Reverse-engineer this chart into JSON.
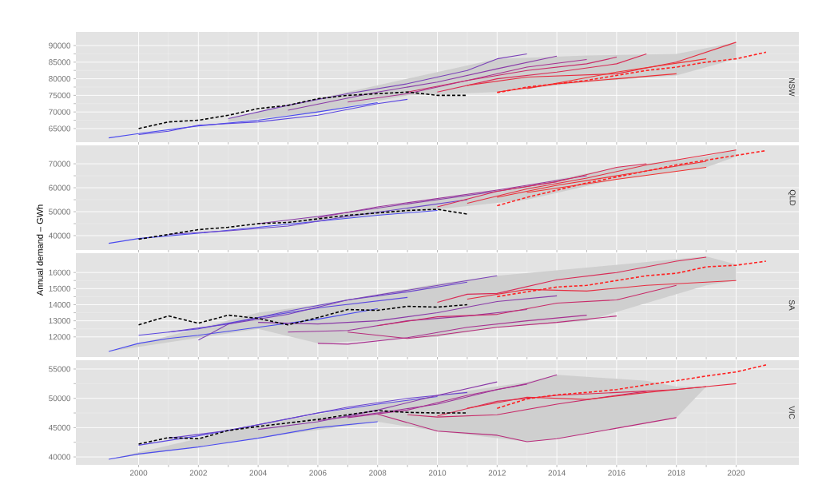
{
  "chart_data": [
    {
      "type": "line",
      "title": "NSW",
      "xlim": [
        1997.9,
        2022.1
      ],
      "ylim": [
        60900,
        94100
      ],
      "xticks": [
        2000,
        2002,
        2004,
        2006,
        2008,
        2010,
        2012,
        2014,
        2016,
        2018,
        2020
      ],
      "yticks": [
        65000,
        70000,
        75000,
        80000,
        85000,
        90000
      ],
      "grid": true,
      "tick_labels": "y",
      "series": [
        {
          "type": "area",
          "color": "#cfcfcf",
          "values": [
            null,
            null,
            null,
            null,
            null,
            null,
            null
          ],
          "x": [
            2003,
            2006,
            2009,
            2012,
            2015,
            2018,
            2020
          ],
          "lower": [
            67000,
            70000,
            75000,
            76000,
            79000,
            81000,
            86000
          ],
          "upper": [
            68000,
            74000,
            80000,
            86000,
            87000,
            87500,
            91000
          ]
        },
        {
          "color": "#4a4aee",
          "x": [
            1999,
            2000,
            2002,
            2004,
            2006,
            2008
          ],
          "values": [
            62200,
            63500,
            65800,
            67500,
            70000,
            72800
          ]
        },
        {
          "color": "#5a46e0",
          "x": [
            2000,
            2001,
            2002,
            2004,
            2006,
            2008,
            2009
          ],
          "values": [
            63200,
            64200,
            66000,
            67000,
            69000,
            72500,
            73800
          ]
        },
        {
          "color": "#7a40b8",
          "x": [
            2003,
            2005,
            2007,
            2009,
            2011,
            2012,
            2013
          ],
          "values": [
            68000,
            72000,
            75500,
            78500,
            82500,
            86000,
            87500
          ]
        },
        {
          "color": "#8a3aa8",
          "x": [
            2005,
            2008,
            2010,
            2012,
            2014
          ],
          "values": [
            70500,
            76000,
            79000,
            83000,
            86800
          ]
        },
        {
          "color": "#a83090",
          "x": [
            2007,
            2009,
            2011,
            2013,
            2015
          ],
          "values": [
            73000,
            75500,
            79500,
            83500,
            85800
          ]
        },
        {
          "color": "#c82a68",
          "x": [
            2009,
            2011,
            2013,
            2015,
            2016
          ],
          "values": [
            76000,
            79500,
            82500,
            84500,
            86500
          ]
        },
        {
          "color": "#d82a55",
          "x": [
            2010,
            2012,
            2014,
            2016,
            2017
          ],
          "values": [
            76000,
            80000,
            82000,
            84500,
            87500
          ]
        },
        {
          "color": "#e62c40",
          "x": [
            2011,
            2013,
            2016,
            2018,
            2020
          ],
          "values": [
            78000,
            80500,
            81500,
            85000,
            91000
          ]
        },
        {
          "color": "#ee2c33",
          "x": [
            2012,
            2014,
            2016,
            2018
          ],
          "values": [
            76000,
            78500,
            80000,
            81500
          ]
        },
        {
          "color": "#f03030",
          "x": [
            2013,
            2016,
            2019
          ],
          "values": [
            77000,
            82000,
            86000
          ]
        },
        {
          "color": "#000000",
          "line_style": "dashed",
          "x": [
            2000,
            2001,
            2002,
            2003,
            2004,
            2005,
            2006,
            2007,
            2008,
            2009,
            2010,
            2011
          ],
          "values": [
            65000,
            67000,
            67500,
            69000,
            71000,
            72000,
            74000,
            75000,
            75500,
            76000,
            75000,
            75000
          ]
        },
        {
          "color": "#ff2020",
          "line_style": "dashed",
          "x": [
            2012,
            2013,
            2014,
            2015,
            2016,
            2017,
            2018,
            2019,
            2020,
            2021
          ],
          "values": [
            75800,
            77500,
            78500,
            79500,
            81000,
            82500,
            83500,
            85000,
            86000,
            88000
          ]
        }
      ]
    },
    {
      "type": "line",
      "title": "QLD",
      "ylabel": "Annual demand – GWh",
      "xlim": [
        1997.9,
        2022.1
      ],
      "ylim": [
        34000,
        77700
      ],
      "xticks": [
        2000,
        2002,
        2004,
        2006,
        2008,
        2010,
        2012,
        2014,
        2016,
        2018,
        2020
      ],
      "yticks": [
        40000,
        50000,
        60000,
        70000
      ],
      "grid": true,
      "tick_labels": "y",
      "series": [
        {
          "type": "area",
          "color": "#cfcfcf",
          "values": [
            null,
            null,
            null,
            null,
            null,
            null
          ],
          "x": [
            2005,
            2010,
            2013,
            2016,
            2019,
            2020
          ],
          "lower": [
            45000,
            51000,
            55000,
            63500,
            68500,
            73000
          ],
          "upper": [
            46000,
            55500,
            61000,
            68500,
            73000,
            76000
          ]
        },
        {
          "color": "#4a4aee",
          "x": [
            1999,
            2000,
            2002,
            2004,
            2006,
            2008,
            2010
          ],
          "values": [
            36800,
            38800,
            41000,
            43500,
            46000,
            48500,
            50500
          ]
        },
        {
          "color": "#6a44cc",
          "x": [
            2001,
            2003,
            2005,
            2007,
            2009,
            2011
          ],
          "values": [
            40500,
            42000,
            44000,
            48000,
            51500,
            55000
          ]
        },
        {
          "color": "#8a3aa8",
          "x": [
            2004,
            2006,
            2008,
            2010,
            2012,
            2014
          ],
          "values": [
            45000,
            48000,
            51500,
            55000,
            58500,
            62500
          ]
        },
        {
          "color": "#9a349a",
          "x": [
            2006,
            2008,
            2010,
            2012,
            2014,
            2015
          ],
          "values": [
            47500,
            52000,
            55500,
            59000,
            63000,
            65000
          ]
        },
        {
          "color": "#d82a55",
          "x": [
            2010,
            2012,
            2014,
            2016,
            2017
          ],
          "values": [
            52000,
            58500,
            62500,
            68500,
            70000
          ]
        },
        {
          "color": "#e62c40",
          "x": [
            2011,
            2013,
            2015,
            2017,
            2020
          ],
          "values": [
            53500,
            59500,
            64000,
            69500,
            75800
          ]
        },
        {
          "color": "#ee2c33",
          "x": [
            2012,
            2014,
            2016,
            2019
          ],
          "values": [
            56000,
            61000,
            65000,
            71000
          ]
        },
        {
          "color": "#f03030",
          "x": [
            2013,
            2016,
            2019
          ],
          "values": [
            58000,
            63500,
            68500
          ]
        },
        {
          "color": "#000000",
          "line_style": "dashed",
          "x": [
            2000,
            2001,
            2002,
            2003,
            2004,
            2005,
            2006,
            2007,
            2008,
            2009,
            2010,
            2011
          ],
          "values": [
            38500,
            40500,
            42500,
            43500,
            45000,
            45500,
            47000,
            48500,
            49500,
            50500,
            51000,
            49000
          ]
        },
        {
          "color": "#ff2020",
          "line_style": "dashed",
          "x": [
            2012,
            2013,
            2014,
            2015,
            2016,
            2017,
            2018,
            2019,
            2020,
            2021
          ],
          "values": [
            52500,
            56000,
            59000,
            62000,
            64500,
            67000,
            69500,
            71500,
            73500,
            75500
          ]
        }
      ]
    },
    {
      "type": "line",
      "title": "SA",
      "xlim": [
        1997.9,
        2022.1
      ],
      "ylim": [
        10750,
        17200
      ],
      "xticks": [
        2000,
        2002,
        2004,
        2006,
        2008,
        2010,
        2012,
        2014,
        2016,
        2018,
        2020
      ],
      "yticks": [
        12000,
        13000,
        14000,
        15000,
        16000
      ],
      "grid": true,
      "tick_labels": "y",
      "series": [
        {
          "type": "area",
          "color": "#cfcfcf",
          "values": [
            null,
            null,
            null,
            null,
            null,
            null,
            null,
            null
          ],
          "x": [
            1999,
            2004,
            2006,
            2010,
            2012,
            2015,
            2019,
            2020
          ],
          "lower": [
            11100,
            12500,
            11600,
            12000,
            12600,
            13000,
            15200,
            15500
          ],
          "upper": [
            11100,
            13500,
            14000,
            15300,
            15800,
            16300,
            17000,
            16500
          ]
        },
        {
          "color": "#4a4aee",
          "x": [
            1999,
            2000,
            2001,
            2002,
            2004,
            2006,
            2008
          ],
          "values": [
            11100,
            11600,
            11900,
            12100,
            12600,
            13100,
            13750
          ]
        },
        {
          "color": "#5a46e0",
          "x": [
            2000,
            2002,
            2004,
            2006,
            2009
          ],
          "values": [
            12100,
            12500,
            13200,
            13800,
            14450
          ]
        },
        {
          "color": "#6a44cc",
          "x": [
            2001,
            2003,
            2005,
            2007,
            2009,
            2011
          ],
          "values": [
            12300,
            12800,
            13600,
            14300,
            14800,
            15400
          ]
        },
        {
          "color": "#7a40b8",
          "x": [
            2002,
            2003,
            2005,
            2007,
            2010,
            2012
          ],
          "values": [
            11800,
            12800,
            13400,
            14300,
            15200,
            15800
          ]
        },
        {
          "color": "#8a3aa8",
          "x": [
            2004,
            2006,
            2008,
            2010,
            2012,
            2014
          ],
          "values": [
            12900,
            12800,
            13000,
            13500,
            14200,
            14550
          ]
        },
        {
          "color": "#9a349a",
          "x": [
            2005,
            2007,
            2009,
            2011,
            2013
          ],
          "values": [
            12300,
            12400,
            13000,
            13300,
            13700
          ]
        },
        {
          "color": "#a83090",
          "x": [
            2006,
            2007,
            2009,
            2011,
            2013,
            2015
          ],
          "values": [
            11600,
            11550,
            11950,
            12600,
            13000,
            13350
          ]
        },
        {
          "color": "#b82a7a",
          "x": [
            2007,
            2009,
            2010,
            2012,
            2014,
            2016
          ],
          "values": [
            12300,
            11900,
            12100,
            12600,
            12900,
            13300
          ]
        },
        {
          "color": "#c82a68",
          "x": [
            2008,
            2010,
            2012,
            2014,
            2016,
            2018
          ],
          "values": [
            12700,
            13250,
            13400,
            14100,
            14300,
            15200
          ]
        },
        {
          "color": "#d82a55",
          "x": [
            2010,
            2011,
            2012,
            2014,
            2016,
            2018,
            2019
          ],
          "values": [
            14150,
            14650,
            14700,
            15550,
            16000,
            16700,
            16950
          ]
        },
        {
          "color": "#e62c40",
          "x": [
            2011,
            2013,
            2015,
            2017,
            2020
          ],
          "values": [
            14350,
            14950,
            14850,
            15200,
            15500
          ]
        },
        {
          "color": "#000000",
          "line_style": "dashed",
          "x": [
            2000,
            2001,
            2002,
            2003,
            2004,
            2005,
            2006,
            2007,
            2008,
            2009,
            2010,
            2011
          ],
          "values": [
            12750,
            13300,
            12850,
            13350,
            13150,
            12750,
            13200,
            13700,
            13650,
            13900,
            13850,
            14000
          ]
        },
        {
          "color": "#ff2020",
          "line_style": "dashed",
          "x": [
            2012,
            2013,
            2014,
            2015,
            2016,
            2017,
            2018,
            2019,
            2020,
            2021
          ],
          "values": [
            14500,
            14800,
            15100,
            15200,
            15500,
            15800,
            15950,
            16350,
            16450,
            16700
          ]
        }
      ]
    },
    {
      "type": "line",
      "title": "VIC",
      "xlim": [
        1997.9,
        2022.1
      ],
      "ylim": [
        38650,
        56500
      ],
      "xticks": [
        2000,
        2002,
        2004,
        2006,
        2008,
        2010,
        2012,
        2014,
        2016,
        2018,
        2020
      ],
      "yticks": [
        40000,
        45000,
        50000,
        55000
      ],
      "grid": true,
      "series": [
        {
          "type": "area",
          "color": "#cfcfcf",
          "values": [
            null,
            null,
            null,
            null,
            null,
            null,
            null,
            null,
            null,
            null
          ],
          "x": [
            1999,
            2004,
            2008,
            2010,
            2013,
            2014,
            2017,
            2018,
            2019,
            2020
          ],
          "lower": [
            39600,
            43200,
            46000,
            44400,
            42600,
            43100,
            45800,
            46700,
            52000,
            52500
          ],
          "upper": [
            39600,
            45500,
            49000,
            50500,
            52800,
            54000,
            53000,
            52000,
            52000,
            52500
          ]
        },
        {
          "color": "#4a4aee",
          "x": [
            1999,
            2000,
            2002,
            2004,
            2006,
            2008
          ],
          "values": [
            39600,
            40500,
            41700,
            43200,
            45000,
            46000
          ]
        },
        {
          "color": "#5a46e0",
          "x": [
            2000,
            2002,
            2004,
            2006,
            2008,
            2010
          ],
          "values": [
            42000,
            43600,
            45500,
            47500,
            49000,
            50300
          ]
        },
        {
          "color": "#6a44cc",
          "x": [
            2001,
            2003,
            2005,
            2007,
            2009,
            2011
          ],
          "values": [
            43200,
            44500,
            46500,
            48500,
            50000,
            51000
          ]
        },
        {
          "color": "#8a3aa8",
          "x": [
            2004,
            2006,
            2008,
            2010,
            2012
          ],
          "values": [
            44700,
            46000,
            48000,
            50500,
            52800
          ]
        },
        {
          "color": "#9a349a",
          "x": [
            2006,
            2008,
            2010,
            2012,
            2013
          ],
          "values": [
            46200,
            47500,
            49000,
            51500,
            52400
          ]
        },
        {
          "color": "#a83090",
          "x": [
            2007,
            2009,
            2011,
            2013,
            2014
          ],
          "values": [
            46700,
            48000,
            50500,
            52500,
            54000
          ]
        },
        {
          "color": "#b82a7a",
          "x": [
            2008,
            2010,
            2012,
            2013,
            2014,
            2016,
            2018
          ],
          "values": [
            47300,
            44400,
            43700,
            42600,
            43100,
            44900,
            46700
          ]
        },
        {
          "color": "#c82a68",
          "x": [
            2009,
            2010,
            2012,
            2014,
            2016,
            2017
          ],
          "values": [
            47200,
            46800,
            47200,
            49000,
            50500,
            51200
          ]
        },
        {
          "color": "#d82a55",
          "x": [
            2010,
            2012,
            2014,
            2016,
            2018,
            2019
          ],
          "values": [
            47000,
            49500,
            50500,
            51000,
            51500,
            52000
          ]
        },
        {
          "color": "#e62c40",
          "x": [
            2011,
            2013,
            2015,
            2017,
            2019,
            2020
          ],
          "values": [
            48300,
            50200,
            49800,
            51000,
            52000,
            52500
          ]
        },
        {
          "color": "#000000",
          "line_style": "dashed",
          "x": [
            2000,
            2001,
            2002,
            2003,
            2004,
            2005,
            2006,
            2007,
            2008,
            2009,
            2010,
            2011
          ],
          "values": [
            42200,
            43300,
            43100,
            44500,
            45200,
            45800,
            46400,
            47200,
            47900,
            47600,
            47500,
            47500
          ]
        },
        {
          "color": "#ff2020",
          "line_style": "dashed",
          "x": [
            2012,
            2013,
            2014,
            2015,
            2016,
            2017,
            2018,
            2019,
            2020,
            2021
          ],
          "values": [
            48300,
            49900,
            50600,
            51000,
            51500,
            52300,
            53000,
            53800,
            54500,
            55700
          ]
        }
      ]
    }
  ]
}
